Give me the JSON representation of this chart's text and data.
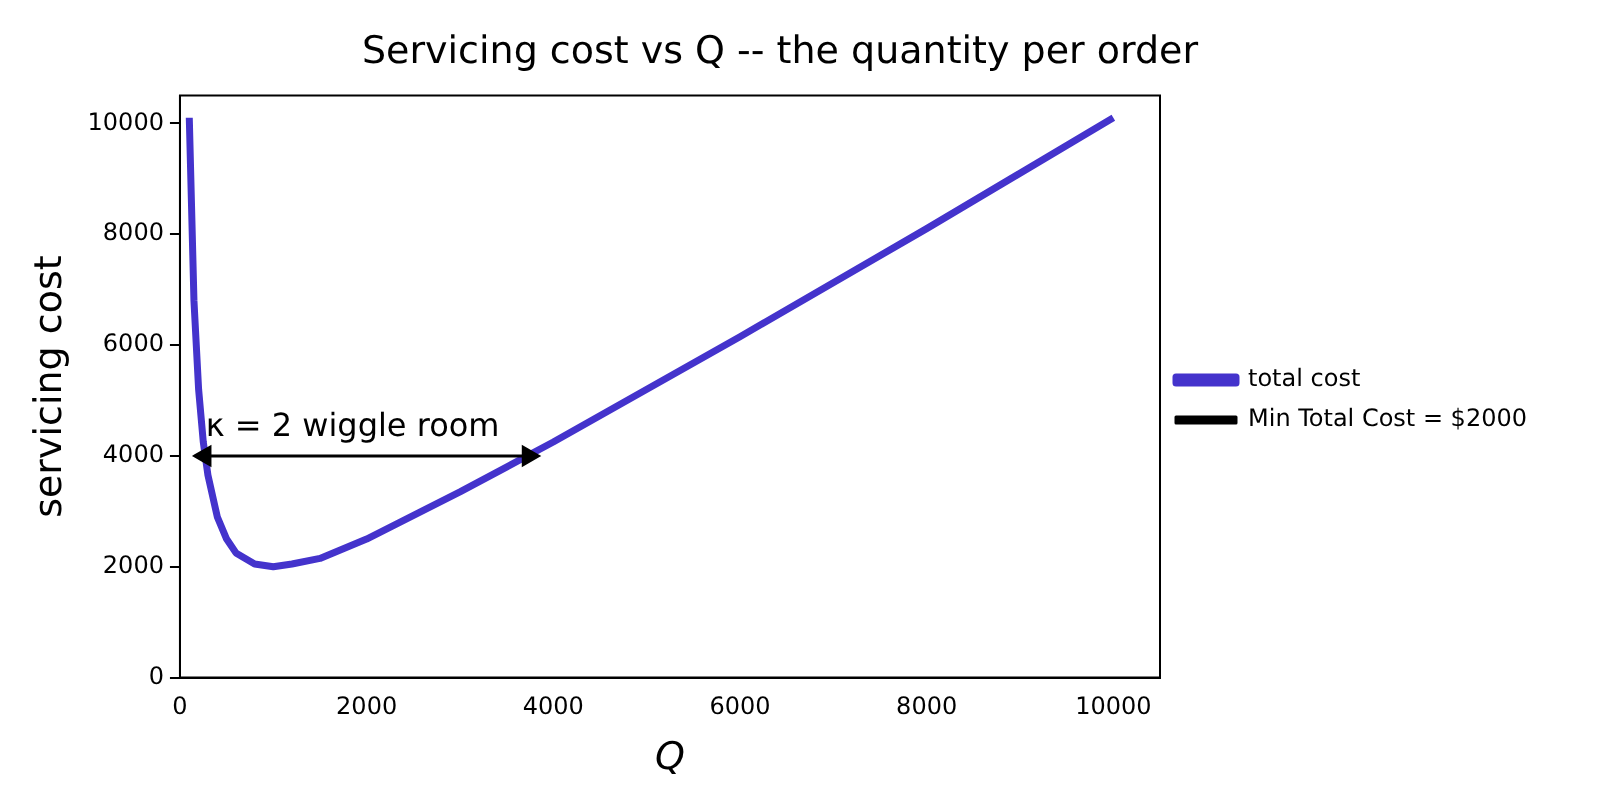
{
  "chart_data": {
    "type": "line",
    "title": "Servicing cost vs Q -- the quantity per order",
    "xlabel": "Q",
    "ylabel": "servicing cost",
    "xlim": [
      0,
      10500
    ],
    "xticks": [
      0,
      2000,
      4000,
      6000,
      8000,
      10000
    ],
    "ylim": [
      0,
      10500
    ],
    "yticks": [
      0,
      2000,
      4000,
      6000,
      8000,
      10000
    ],
    "grid": false,
    "legend": "right",
    "marker": "none",
    "line_style": "solid",
    "series": [
      {
        "name": "total cost",
        "color": "#4433cc",
        "x": [
          100,
          150,
          200,
          250,
          300,
          400,
          500,
          600,
          700,
          800,
          1000,
          1200,
          1500,
          2000,
          3000,
          4000,
          6000,
          8000,
          10000
        ],
        "values": [
          10100,
          6800,
          5200,
          4250,
          3650,
          2900,
          2500,
          2250,
          2150,
          2050,
          2000,
          2050,
          2150,
          2500,
          3350,
          4250,
          6150,
          8100,
          10100
        ]
      },
      {
        "name": "Min Total Cost = $2000",
        "color": "#000000",
        "marker": "triangle",
        "x": [
          268,
          3732
        ],
        "values": [
          4000,
          4000
        ]
      }
    ],
    "annotations": [
      {
        "text": "κ = 2 wiggle room",
        "x": 1850,
        "y": 4000
      }
    ]
  }
}
